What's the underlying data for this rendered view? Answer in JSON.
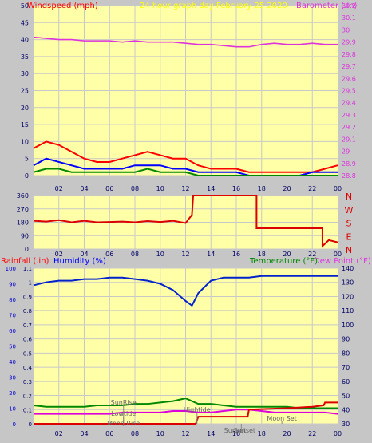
{
  "chart_data": [
    {
      "type": "line",
      "title": "24 hour graph day   February 25 2020",
      "left_label": "Windspeed (mph)",
      "right_label": "Barometer (.in)",
      "x_ticks": [
        "02",
        "04",
        "06",
        "08",
        "10",
        "12",
        "14",
        "16",
        "18",
        "20",
        "22",
        "00"
      ],
      "y_left": {
        "min": 0,
        "max": 50,
        "ticks": [
          "0",
          "5",
          "10",
          "15",
          "20",
          "25",
          "30",
          "35",
          "40",
          "45",
          "50"
        ]
      },
      "y_right": {
        "min": 28.8,
        "max": 30.2,
        "ticks": [
          "28.8",
          "28.9",
          "29",
          "29.1",
          "29.2",
          "29.3",
          "29.4",
          "29.5",
          "29.6",
          "29.7",
          "29.8",
          "29.9",
          "30",
          "30.1",
          "30.2"
        ]
      },
      "series": [
        {
          "key": "barometer",
          "axis": "right",
          "color": "#dd33dd",
          "x": [
            0,
            1,
            2,
            3,
            4,
            5,
            6,
            7,
            8,
            9,
            10,
            11,
            12,
            13,
            14,
            15,
            16,
            17,
            18,
            19,
            20,
            21,
            22,
            23,
            24
          ],
          "y": [
            29.94,
            29.93,
            29.92,
            29.92,
            29.91,
            29.91,
            29.91,
            29.9,
            29.91,
            29.9,
            29.9,
            29.9,
            29.89,
            29.88,
            29.88,
            29.87,
            29.86,
            29.86,
            29.88,
            29.89,
            29.88,
            29.88,
            29.89,
            29.88,
            29.88
          ]
        },
        {
          "key": "gust",
          "axis": "left",
          "color": "#ff0000",
          "x": [
            0,
            1,
            2,
            3,
            4,
            5,
            6,
            7,
            8,
            9,
            10,
            11,
            12,
            13,
            14,
            15,
            16,
            17,
            18,
            19,
            20,
            21,
            22,
            23,
            24
          ],
          "y": [
            8,
            10,
            9,
            7,
            5,
            4,
            4,
            5,
            6,
            7,
            6,
            5,
            5,
            3,
            2,
            2,
            2,
            1,
            1,
            1,
            1,
            1,
            1,
            2,
            3
          ]
        },
        {
          "key": "wind",
          "axis": "left",
          "color": "#0000ff",
          "x": [
            0,
            1,
            2,
            3,
            4,
            5,
            6,
            7,
            8,
            9,
            10,
            11,
            12,
            13,
            14,
            15,
            16,
            17,
            18,
            19,
            20,
            21,
            22,
            23,
            24
          ],
          "y": [
            3,
            5,
            4,
            3,
            2,
            2,
            2,
            2,
            3,
            3,
            3,
            2,
            2,
            1,
            1,
            1,
            1,
            0,
            0,
            0,
            0,
            0,
            1,
            1,
            1
          ]
        },
        {
          "key": "average",
          "axis": "left",
          "color": "#008800",
          "x": [
            0,
            1,
            2,
            3,
            4,
            5,
            6,
            7,
            8,
            9,
            10,
            11,
            12,
            13,
            14,
            15,
            16,
            17,
            18,
            19,
            20,
            21,
            22,
            23,
            24
          ],
          "y": [
            1,
            2,
            2,
            1,
            1,
            1,
            1,
            1,
            1,
            2,
            1,
            1,
            1,
            0,
            0,
            0,
            0,
            0,
            0,
            0,
            0,
            0,
            0,
            0,
            0
          ]
        }
      ]
    },
    {
      "type": "line",
      "y_ticks": [
        "0",
        "90",
        "180",
        "270",
        "360"
      ],
      "direction_labels": [
        "N",
        "W",
        "S",
        "E",
        "N"
      ],
      "x_ticks": [
        "02",
        "04",
        "06",
        "08",
        "10",
        "12",
        "14",
        "16",
        "18",
        "20",
        "22",
        "00"
      ],
      "series": [
        {
          "key": "wind-direction",
          "color": "#dd0000",
          "x": [
            0,
            1,
            2,
            3,
            4,
            5,
            6,
            7,
            8,
            9,
            10,
            11,
            12,
            12.5,
            12.6,
            12.6,
            17.6,
            17.6,
            22.8,
            22.8,
            23.3,
            24
          ],
          "y": [
            190,
            185,
            195,
            180,
            190,
            180,
            182,
            185,
            180,
            188,
            182,
            190,
            175,
            230,
            360,
            360,
            360,
            140,
            140,
            20,
            60,
            45
          ]
        }
      ]
    },
    {
      "type": "line",
      "left_labels": [
        "Rainfall (.in)",
        "Humidity (%)"
      ],
      "right_labels": [
        "Temperature (°F)",
        "Dew Point (°F)"
      ],
      "x_ticks": [
        "02",
        "04",
        "06",
        "08",
        "10",
        "12",
        "14",
        "16",
        "18",
        "20",
        "22",
        "00"
      ],
      "y_humidity": {
        "min": 0,
        "max": 100,
        "ticks": [
          "0",
          "10",
          "20",
          "30",
          "40",
          "50",
          "60",
          "70",
          "80",
          "90",
          "100"
        ]
      },
      "y_rain": {
        "min": 0,
        "max": 1.1,
        "ticks": [
          "0",
          "0.1",
          "0.2",
          "0.3",
          "0.4",
          "0.5",
          "0.6",
          "0.7",
          "0.8",
          "0.9",
          "1",
          "1.1"
        ]
      },
      "y_temp": {
        "min": 30,
        "max": 140,
        "ticks": [
          "30",
          "40",
          "50",
          "60",
          "70",
          "80",
          "90",
          "100",
          "110",
          "120",
          "130",
          "140"
        ]
      },
      "annotations": [
        "SunRise",
        "Lowtide",
        "Moon Rise",
        "Hightide",
        "Sunset",
        "Moon Set",
        "Sunset"
      ],
      "series": [
        {
          "key": "humidity",
          "axis": "humidity",
          "color": "#0022cc",
          "x": [
            0,
            1,
            2,
            3,
            4,
            5,
            6,
            7,
            8,
            9,
            10,
            11,
            12,
            12.5,
            13,
            14,
            15,
            16,
            17,
            18,
            19,
            20,
            21,
            22,
            23,
            24
          ],
          "y": [
            89,
            91,
            92,
            92,
            93,
            93,
            94,
            94,
            93,
            92,
            90,
            86,
            79,
            76,
            84,
            92,
            94,
            94,
            94,
            95,
            95,
            95,
            95,
            95,
            95,
            95
          ]
        },
        {
          "key": "temperature",
          "axis": "temp",
          "color": "#008800",
          "x": [
            0,
            1,
            2,
            3,
            4,
            5,
            6,
            7,
            8,
            9,
            10,
            11,
            12,
            13,
            14,
            15,
            16,
            17,
            18,
            19,
            20,
            21,
            22,
            23,
            24
          ],
          "y": [
            43,
            42,
            42,
            42,
            42,
            43,
            43,
            43,
            44,
            44,
            45,
            46,
            48,
            44,
            44,
            43,
            42,
            42,
            42,
            42,
            42,
            41,
            41,
            41,
            41
          ]
        },
        {
          "key": "dew-point",
          "axis": "temp",
          "color": "#dd00dd",
          "x": [
            0,
            1,
            2,
            3,
            4,
            5,
            6,
            7,
            8,
            9,
            10,
            11,
            12,
            13,
            14,
            15,
            16,
            17,
            18,
            19,
            20,
            21,
            22,
            23,
            24
          ],
          "y": [
            37,
            37,
            37,
            37,
            37,
            37,
            37,
            38,
            38,
            38,
            38,
            39,
            39,
            38,
            38,
            39,
            40,
            40,
            39,
            38,
            38,
            38,
            38,
            38,
            37
          ]
        },
        {
          "key": "rainfall",
          "axis": "rain",
          "color": "#dd0000",
          "x": [
            0,
            12.8,
            13,
            16.9,
            17,
            20,
            22,
            22.9,
            23,
            24
          ],
          "y": [
            0,
            0,
            0.05,
            0.05,
            0.1,
            0.11,
            0.12,
            0.13,
            0.15,
            0.15
          ]
        }
      ]
    }
  ]
}
